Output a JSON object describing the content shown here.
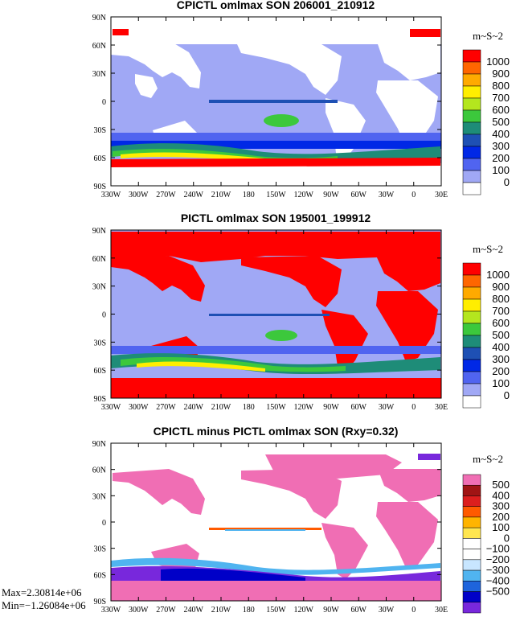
{
  "chart_data": [
    {
      "type": "heatmap",
      "title": "CPICTL omlmax SON 206001_210912",
      "units": "m~S~2",
      "x_ticks": [
        "330W",
        "300W",
        "270W",
        "240W",
        "210W",
        "180",
        "150W",
        "120W",
        "90W",
        "60W",
        "30W",
        "0",
        "30E"
      ],
      "y_ticks": [
        "90N",
        "60N",
        "30N",
        "0",
        "30S",
        "60S",
        "90S"
      ],
      "colorbar": {
        "labels": [
          "1000",
          "900",
          "800",
          "700",
          "600",
          "500",
          "400",
          "300",
          "200",
          "100",
          "0"
        ],
        "colors": [
          "#ff0000",
          "#ff6600",
          "#ffaa00",
          "#ffee00",
          "#b4e61e",
          "#3cc83c",
          "#1e8c78",
          "#1e50b4",
          "#0028e6",
          "#5064f0",
          "#a0a8f5",
          "#ffffff"
        ]
      },
      "land_color": "#ffffff",
      "ocean_background": "#a0a8f5"
    },
    {
      "type": "heatmap",
      "title": "PICTL omlmax SON 195001_199912",
      "units": "m~S~2",
      "x_ticks": [
        "330W",
        "300W",
        "270W",
        "240W",
        "210W",
        "180",
        "150W",
        "120W",
        "90W",
        "60W",
        "30W",
        "0",
        "30E"
      ],
      "y_ticks": [
        "90N",
        "60N",
        "30N",
        "0",
        "30S",
        "60S",
        "90S"
      ],
      "colorbar": {
        "labels": [
          "1000",
          "900",
          "800",
          "700",
          "600",
          "500",
          "400",
          "300",
          "200",
          "100",
          "0"
        ],
        "colors": [
          "#ff0000",
          "#ff6600",
          "#ffaa00",
          "#ffee00",
          "#b4e61e",
          "#3cc83c",
          "#1e8c78",
          "#1e50b4",
          "#0028e6",
          "#5064f0",
          "#a0a8f5",
          "#ffffff"
        ]
      },
      "land_color": "#ff0000",
      "ocean_background": "#a0a8f5"
    },
    {
      "type": "heatmap",
      "title": "CPICTL minus PICTL omlmax SON (Rxy=0.32)",
      "units": "m~S~2",
      "x_ticks": [
        "330W",
        "300W",
        "270W",
        "240W",
        "210W",
        "180",
        "150W",
        "120W",
        "90W",
        "60W",
        "30W",
        "0",
        "30E"
      ],
      "y_ticks": [
        "90N",
        "60N",
        "30N",
        "0",
        "30S",
        "60S",
        "90S"
      ],
      "colorbar": {
        "labels": [
          "500",
          "400",
          "300",
          "200",
          "100",
          "0",
          "−100",
          "−200",
          "−300",
          "−400",
          "−500"
        ],
        "colors": [
          "#f06eb4",
          "#a01414",
          "#dc1e1e",
          "#ff5a00",
          "#ffb400",
          "#ffe650",
          "#ffffff",
          "#ffffff",
          "#c8e6ff",
          "#50b4f0",
          "#1e64dc",
          "#0000c8",
          "#7828dc"
        ]
      },
      "land_color": "#f06eb4",
      "ocean_background": "#ffffff",
      "stats": {
        "max": "Max=2.30814e+06",
        "min": "Min=−1.26084e+06"
      }
    }
  ]
}
